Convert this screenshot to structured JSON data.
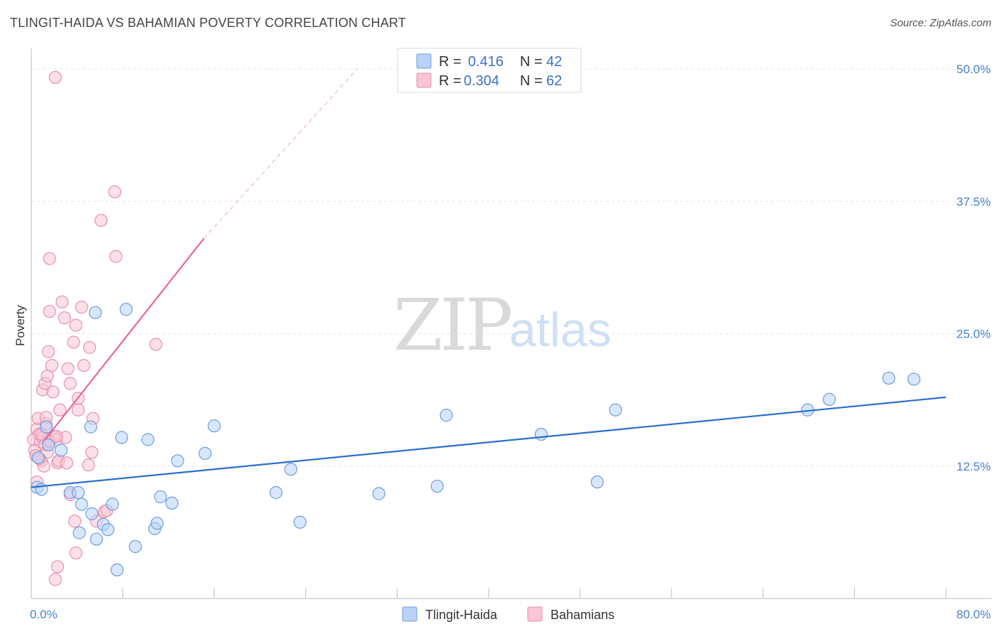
{
  "title": "TLINGIT-HAIDA VS BAHAMIAN POVERTY CORRELATION CHART",
  "source": "Source: ZipAtlas.com",
  "watermark": {
    "zip": "ZIP",
    "atlas": "atlas"
  },
  "colors": {
    "blue_fill": "#b8d3f5",
    "blue_stroke": "#6d9ddf",
    "blue_line": "#2a6fcf",
    "pink_fill": "#f8c6d5",
    "pink_stroke": "#ea8fab",
    "pink_line": "#e8659a",
    "tick_text": "#4a7fd0",
    "grid": "#e3e3e3"
  },
  "legend": {
    "rows": [
      {
        "r_label": "R =",
        "r_value": "0.416",
        "n_label": "N =",
        "n_value": "42"
      },
      {
        "r_label": "R =",
        "r_value": "0.304",
        "n_label": "N =",
        "n_value": "62"
      }
    ]
  },
  "bottom_legend": [
    "Tlingit-Haida",
    "Bahamians"
  ],
  "chart_data": {
    "type": "scatter",
    "title": "TLINGIT-HAIDA VS BAHAMIAN POVERTY CORRELATION CHART",
    "xlabel": "",
    "ylabel": "Poverty",
    "xlim": [
      0,
      80
    ],
    "ylim": [
      0,
      50
    ],
    "x_tick_labels": [
      "0.0%",
      "80.0%"
    ],
    "y_ticks": [
      12.5,
      25.0,
      37.5,
      50.0
    ],
    "y_tick_labels": [
      "12.5%",
      "25.0%",
      "37.5%",
      "50.0%"
    ],
    "series": [
      {
        "name": "Tlingit-Haida",
        "r": 0.416,
        "n": 42,
        "trend": {
          "x0": 0,
          "y0": 10.5,
          "x1": 80,
          "y1": 19.0,
          "dashed_to": null
        },
        "points": [
          [
            0.5,
            10.5
          ],
          [
            0.9,
            10.3
          ],
          [
            1.3,
            16.2
          ],
          [
            1.5,
            14.5
          ],
          [
            2.6,
            14.0
          ],
          [
            3.4,
            10.0
          ],
          [
            4.1,
            10.0
          ],
          [
            4.2,
            6.2
          ],
          [
            4.4,
            8.9
          ],
          [
            5.3,
            8.0
          ],
          [
            5.2,
            16.2
          ],
          [
            5.6,
            27.0
          ],
          [
            5.7,
            5.6
          ],
          [
            6.3,
            7.0
          ],
          [
            6.7,
            6.5
          ],
          [
            7.1,
            8.9
          ],
          [
            7.5,
            2.7
          ],
          [
            7.9,
            15.2
          ],
          [
            8.3,
            27.3
          ],
          [
            9.1,
            4.9
          ],
          [
            10.2,
            15.0
          ],
          [
            10.8,
            6.6
          ],
          [
            11.0,
            7.1
          ],
          [
            11.3,
            9.6
          ],
          [
            12.3,
            9.0
          ],
          [
            12.8,
            13.0
          ],
          [
            15.2,
            13.7
          ],
          [
            16.0,
            16.3
          ],
          [
            21.4,
            10.0
          ],
          [
            22.7,
            12.2
          ],
          [
            23.5,
            7.2
          ],
          [
            30.4,
            9.9
          ],
          [
            35.5,
            10.6
          ],
          [
            36.3,
            17.3
          ],
          [
            44.6,
            15.5
          ],
          [
            49.5,
            11.0
          ],
          [
            51.1,
            17.8
          ],
          [
            67.9,
            17.8
          ],
          [
            69.8,
            18.8
          ],
          [
            75.0,
            20.8
          ],
          [
            77.2,
            20.7
          ],
          [
            0.6,
            13.3
          ]
        ]
      },
      {
        "name": "Bahamians",
        "r": 0.304,
        "n": 62,
        "trend": {
          "x0": 1.2,
          "y0": 15.0,
          "x1": 15.1,
          "y1": 34.0,
          "dashed_to": [
            28.5,
            50.0
          ]
        },
        "points": [
          [
            0.2,
            15.0
          ],
          [
            0.3,
            14.0
          ],
          [
            0.4,
            13.5
          ],
          [
            0.5,
            16.0
          ],
          [
            0.6,
            17.0
          ],
          [
            0.7,
            15.5
          ],
          [
            0.8,
            14.8
          ],
          [
            0.9,
            13.0
          ],
          [
            1.0,
            15.2
          ],
          [
            1.1,
            12.5
          ],
          [
            1.2,
            14.5
          ],
          [
            1.3,
            16.5
          ],
          [
            1.4,
            13.8
          ],
          [
            1.5,
            15.0
          ],
          [
            0.5,
            11.0
          ],
          [
            0.7,
            13.2
          ],
          [
            1.0,
            19.7
          ],
          [
            1.2,
            20.3
          ],
          [
            1.4,
            21.0
          ],
          [
            1.5,
            23.3
          ],
          [
            1.6,
            27.1
          ],
          [
            1.8,
            22.0
          ],
          [
            1.9,
            19.5
          ],
          [
            1.6,
            32.1
          ],
          [
            2.0,
            15.3
          ],
          [
            2.2,
            15.0
          ],
          [
            2.3,
            12.8
          ],
          [
            2.4,
            13.0
          ],
          [
            2.5,
            17.8
          ],
          [
            2.7,
            28.0
          ],
          [
            2.9,
            26.5
          ],
          [
            3.0,
            15.2
          ],
          [
            3.2,
            21.7
          ],
          [
            3.4,
            20.3
          ],
          [
            3.7,
            24.2
          ],
          [
            3.9,
            25.8
          ],
          [
            4.1,
            18.9
          ],
          [
            3.8,
            7.3
          ],
          [
            3.9,
            4.3
          ],
          [
            2.1,
            49.2
          ],
          [
            2.1,
            1.8
          ],
          [
            2.3,
            3.0
          ],
          [
            3.4,
            9.8
          ],
          [
            4.4,
            27.5
          ],
          [
            4.6,
            22.0
          ],
          [
            5.1,
            23.7
          ],
          [
            5.3,
            13.8
          ],
          [
            5.4,
            17.0
          ],
          [
            6.4,
            8.2
          ],
          [
            5.0,
            12.6
          ],
          [
            5.7,
            7.3
          ],
          [
            6.6,
            8.3
          ],
          [
            6.1,
            35.7
          ],
          [
            7.3,
            38.4
          ],
          [
            7.4,
            32.3
          ],
          [
            10.9,
            24.0
          ],
          [
            4.1,
            17.8
          ],
          [
            1.3,
            17.1
          ],
          [
            0.9,
            15.5
          ],
          [
            1.6,
            14.8
          ],
          [
            2.2,
            15.3
          ],
          [
            3.1,
            12.8
          ]
        ]
      }
    ]
  }
}
